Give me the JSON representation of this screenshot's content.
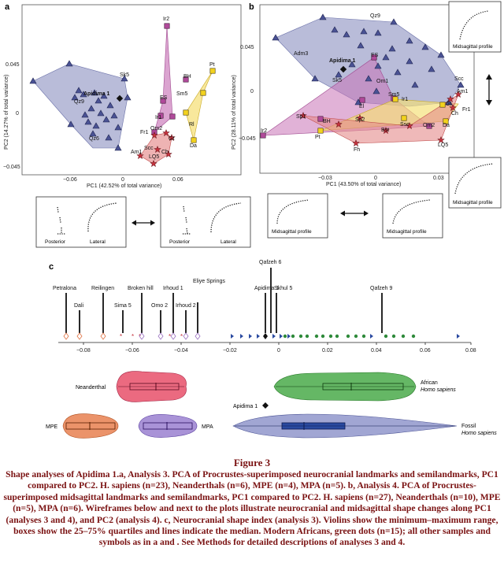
{
  "figure": {
    "panel_a": {
      "letter": "a",
      "xlabel": "PC1 (42.52% of total variance)",
      "ylabel": "PC2 (14.27% of total variance)",
      "xticks": [
        "−0.06",
        "0",
        "0.06"
      ],
      "yticks": [
        "0.045",
        "0",
        "−0.045"
      ],
      "labels": {
        "apidima": "Apidima 1",
        "sk5": "Sk5",
        "qz9": "Qz9",
        "qz6": "Qz6",
        "ir2": "Ir2",
        "pt": "Pt",
        "bh": "BH",
        "sm5": "Sm5",
        "es": "ES",
        "ir1": "Ir1",
        "rl": "Rl",
        "om2": "Om2",
        "fr1": "Fr1",
        "am1": "Am1",
        "scc": "Scc",
        "gt": "Gt",
        "ch": "Ch",
        "lq5": "LQ5",
        "da": "Da"
      }
    },
    "panel_b": {
      "letter": "b",
      "xlabel": "PC1 (43.50% of total variance)",
      "ylabel": "PC2 (28.11% of total variance)",
      "xticks": [
        "−0.03",
        "0",
        "0.03"
      ],
      "yticks": [
        "0.045",
        "0",
        "−0.045"
      ],
      "labels": {
        "apidima": "Apidima 1",
        "qz9": "Qz9",
        "adm3": "Adm3",
        "sk5": "Sk5",
        "es": "ES",
        "om1": "Om1",
        "ir1": "Ir1",
        "sm5": "Sm5",
        "el": "El",
        "ir2": "Ir2",
        "sp1": "Sp1",
        "bh": "BH",
        "pt": "Pt",
        "sp2": "Sp2",
        "fh": "Fh",
        "ssc": "Ssc",
        "bst": "Bst",
        "om2": "Om2",
        "lq5": "LQ5",
        "scc": "Scc",
        "am1": "Am1",
        "gt": "Gt",
        "ch": "Ch",
        "fr1": "Fr1",
        "da": "Da"
      }
    },
    "wireframes": {
      "midsagittal": "Midsagittal profile",
      "posterior": "Posterior",
      "lateral": "Lateral"
    },
    "panel_c": {
      "letter": "c",
      "xticks": [
        "−0.08",
        "−0.06",
        "−0.04",
        "−0.02",
        "0",
        "0.02",
        "0.04",
        "0.06",
        "0.08"
      ],
      "specimens": [
        "Petralona",
        "Dali",
        "Reilingen",
        "Sima 5",
        "Broken hill",
        "Omo 2",
        "Irhoud 1",
        "Irhoud 2",
        "Eliye Springs",
        "Apidima 1",
        "Qafzeh 6",
        "Skhul 5",
        "Qafzeh 9"
      ],
      "violins": {
        "neanderthal": "Neanderthal",
        "african": "African",
        "homo_sapiens": "Homo sapiens",
        "apidima": "Apidima 1",
        "mpe": "MPE",
        "mpa": "MPA",
        "fossil": "Fossil"
      }
    }
  },
  "caption": {
    "title": "Figure 3",
    "text": "Shape analyses of Apidima 1.a, Analysis 3. PCA of Procrustes-superimposed neurocranial landmarks and semilandmarks, PC1 compared to PC2. H. sapiens (n=23), Neanderthals (n=6), MPE (n=4), MPA (n=5). b, Analysis 4. PCA of Procrustes-superimposed midsagittal landmarks and semilandmarks, PC1 compared to PC2. H. sapiens (n=27), Neanderthals (n=10), MPE (n=5), MPA (n=6). Wireframes below and next to the plots illustrate neurocranial and midsagittal shape changes along PC1 (analyses 3 and 4), and PC2 (analysis 4). c, Neurocranial shape index (analysis 3). Violins show the minimum–maximum range, boxes show the 25–75% quartiles and lines indicate the median. Modern Africans, green dots (n=15); all other samples and symbols as in a and . See Methods for detailed descriptions of analyses 3 and 4."
  }
}
